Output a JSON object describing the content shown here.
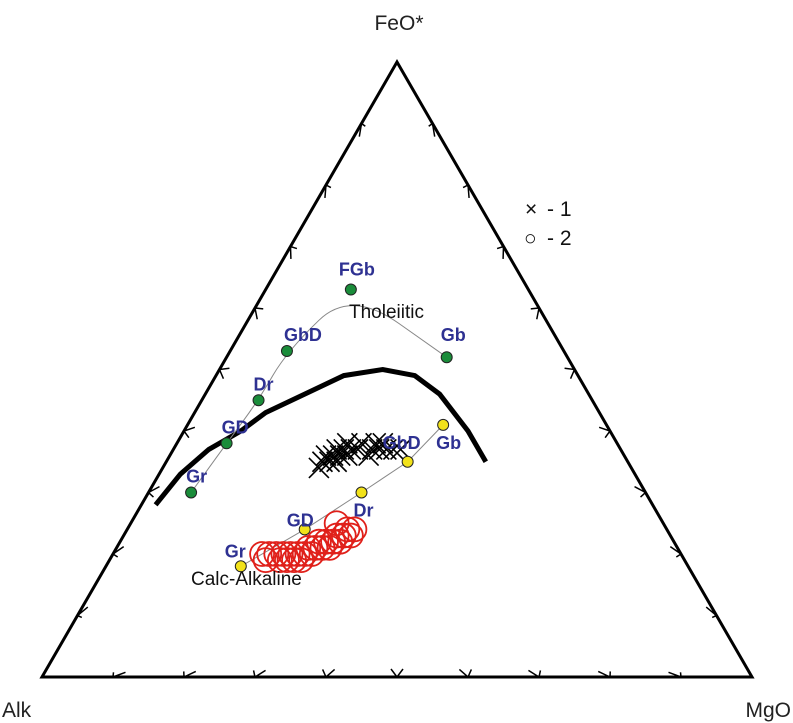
{
  "chart_data": {
    "type": "scatter",
    "diagram": "ternary AFM",
    "vertices": {
      "top": "FeO*",
      "left": "Alk",
      "right": "MgO"
    },
    "field_labels": {
      "upper": "Tholeiitic",
      "lower": "Calc-Alkaline"
    },
    "boundary_curve": [
      [
        70,
        28,
        2
      ],
      [
        64,
        33,
        3
      ],
      [
        58,
        37,
        5
      ],
      [
        52,
        40,
        8
      ],
      [
        47,
        43,
        10
      ],
      [
        40,
        46,
        14
      ],
      [
        33,
        49,
        18
      ],
      [
        27,
        50,
        23
      ],
      [
        23,
        49,
        28
      ],
      [
        21,
        46,
        33
      ],
      [
        20,
        40,
        40
      ],
      [
        20,
        35,
        45
      ]
    ],
    "series": [
      {
        "name": "1",
        "marker": "x",
        "color": "#000000",
        "points": [
          [
            44,
            34,
            22
          ],
          [
            43,
            35,
            22
          ],
          [
            42,
            35,
            23
          ],
          [
            42,
            36,
            22
          ],
          [
            41,
            36,
            23
          ],
          [
            41,
            35,
            24
          ],
          [
            40,
            37,
            23
          ],
          [
            40,
            36,
            24
          ],
          [
            39,
            37,
            24
          ],
          [
            39,
            36,
            25
          ],
          [
            38,
            38,
            24
          ],
          [
            38,
            37,
            25
          ],
          [
            37,
            37,
            26
          ],
          [
            36,
            38,
            26
          ],
          [
            36,
            36,
            28
          ],
          [
            35,
            37,
            28
          ],
          [
            34,
            38,
            28
          ],
          [
            34,
            37,
            29
          ],
          [
            33,
            38,
            29
          ],
          [
            33,
            37,
            30
          ],
          [
            32,
            37,
            31
          ],
          [
            31,
            37,
            32
          ]
        ]
      },
      {
        "name": "2",
        "marker": "circle",
        "color": "#e0201a",
        "points": [
          [
            59,
            20,
            21
          ],
          [
            59,
            19,
            22
          ],
          [
            58,
            20,
            22
          ],
          [
            57,
            20,
            23
          ],
          [
            57,
            19,
            24
          ],
          [
            56,
            20,
            24
          ],
          [
            56,
            19,
            25
          ],
          [
            55,
            20,
            25
          ],
          [
            55,
            19,
            26
          ],
          [
            54,
            20,
            26
          ],
          [
            54,
            19,
            27
          ],
          [
            53,
            20,
            27
          ],
          [
            52,
            21,
            27
          ],
          [
            52,
            20,
            28
          ],
          [
            51,
            21,
            28
          ],
          [
            50,
            21,
            29
          ],
          [
            50,
            22,
            28
          ],
          [
            49,
            21,
            30
          ],
          [
            49,
            22,
            29
          ],
          [
            48,
            22,
            30
          ],
          [
            47,
            22,
            31
          ],
          [
            46,
            23,
            31
          ],
          [
            45,
            23,
            32
          ],
          [
            45,
            24,
            31
          ],
          [
            46,
            25,
            29
          ],
          [
            47,
            23,
            30
          ],
          [
            44,
            24,
            32
          ]
        ]
      }
    ],
    "trends": [
      {
        "name": "tholeiitic",
        "color": "#1a8c3a",
        "points": [
          {
            "label": "Gr",
            "afm": [
              64,
              30,
              6
            ]
          },
          {
            "label": "GD",
            "afm": [
              55,
              38,
              7
            ]
          },
          {
            "label": "Dr",
            "afm": [
              47,
              45,
              8
            ]
          },
          {
            "label": "GbD",
            "afm": [
              39,
              53,
              8
            ]
          },
          {
            "label": "FGb",
            "afm": [
              25,
              63,
              12
            ]
          },
          {
            "label": "Gb",
            "afm": [
              17,
              52,
              31
            ]
          }
        ]
      },
      {
        "name": "calc-alkaline",
        "color": "#f2e21a",
        "points": [
          {
            "label": "Gr",
            "afm": [
              63,
              18,
              19
            ]
          },
          {
            "label": "GD",
            "afm": [
              51,
              24,
              25
            ]
          },
          {
            "label": "Dr",
            "afm": [
              40,
              30,
              30
            ]
          },
          {
            "label": "GbD",
            "afm": [
              31,
              35,
              34
            ]
          },
          {
            "label": "Gb",
            "afm": [
              23,
              41,
              36
            ]
          }
        ]
      }
    ],
    "legend": {
      "placement": "right",
      "entries": [
        {
          "symbol": "×",
          "label": "- 1"
        },
        {
          "symbol": "○",
          "label": "- 2"
        }
      ]
    },
    "tick_interval": 10
  }
}
